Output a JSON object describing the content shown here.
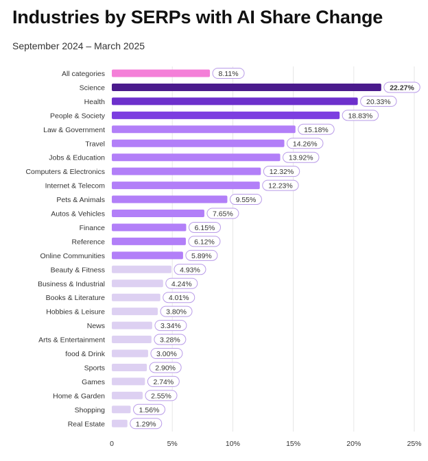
{
  "chart_data": {
    "type": "bar",
    "orientation": "horizontal",
    "title": "Industries by SERPs with AI Share Change",
    "subtitle": "September 2024 – March 2025",
    "categories": [
      "All categories",
      "Science",
      "Health",
      "People & Society",
      "Law & Government",
      "Travel",
      "Jobs & Education",
      "Computers & Electronics",
      "Internet & Telecom",
      "Pets & Animals",
      "Autos & Vehicles",
      "Finance",
      "Reference",
      "Online Communities",
      "Beauty & Fitness",
      "Business &  Industrial",
      "Books & Literature",
      "Hobbies & Leisure",
      "News",
      "Arts & Entertainment",
      "food & Drink",
      "Sports",
      "Games",
      "Home & Garden",
      "Shopping",
      "Real Estate"
    ],
    "values": [
      8.11,
      22.27,
      20.33,
      18.83,
      15.18,
      14.26,
      13.92,
      12.32,
      12.23,
      9.55,
      7.65,
      6.15,
      6.12,
      5.89,
      4.93,
      4.24,
      4.01,
      3.8,
      3.34,
      3.28,
      3.0,
      2.9,
      2.74,
      2.55,
      1.56,
      1.29
    ],
    "value_labels": [
      "8.11%",
      "22.27%",
      "20.33%",
      "18.83%",
      "15.18%",
      "14.26%",
      "13.92%",
      "12.32%",
      "12.23%",
      "9.55%",
      "7.65%",
      "6.15%",
      "6.12%",
      "5.89%",
      "4.93%",
      "4.24%",
      "4.01%",
      "3.80%",
      "3.34%",
      "3.28%",
      "3.00%",
      "2.90%",
      "2.74%",
      "2.55%",
      "1.56%",
      "1.29%"
    ],
    "bar_colors": [
      "#f47fd8",
      "#4a1a8c",
      "#6d30cc",
      "#7c3ee0",
      "#b27ff8",
      "#b27ff8",
      "#b27ff8",
      "#b27ff8",
      "#b27ff8",
      "#b27ff8",
      "#b27ff8",
      "#b27ff8",
      "#b27ff8",
      "#b27ff8",
      "#ddd0f2",
      "#ddd0f2",
      "#ddd0f2",
      "#ddd0f2",
      "#ddd0f2",
      "#ddd0f2",
      "#ddd0f2",
      "#ddd0f2",
      "#ddd0f2",
      "#ddd0f2",
      "#ddd0f2",
      "#ddd0f2"
    ],
    "label_border_color": "#b89ae8",
    "highlight_label_color": "#4a1a8c",
    "highlight_index": 1,
    "xlim": [
      0,
      25
    ],
    "xticks": [
      0,
      5,
      10,
      15,
      20,
      25
    ],
    "xtick_labels": [
      "0",
      "5%",
      "10%",
      "15%",
      "20%",
      "25%"
    ],
    "grid": true,
    "xlabel": "",
    "ylabel": ""
  }
}
